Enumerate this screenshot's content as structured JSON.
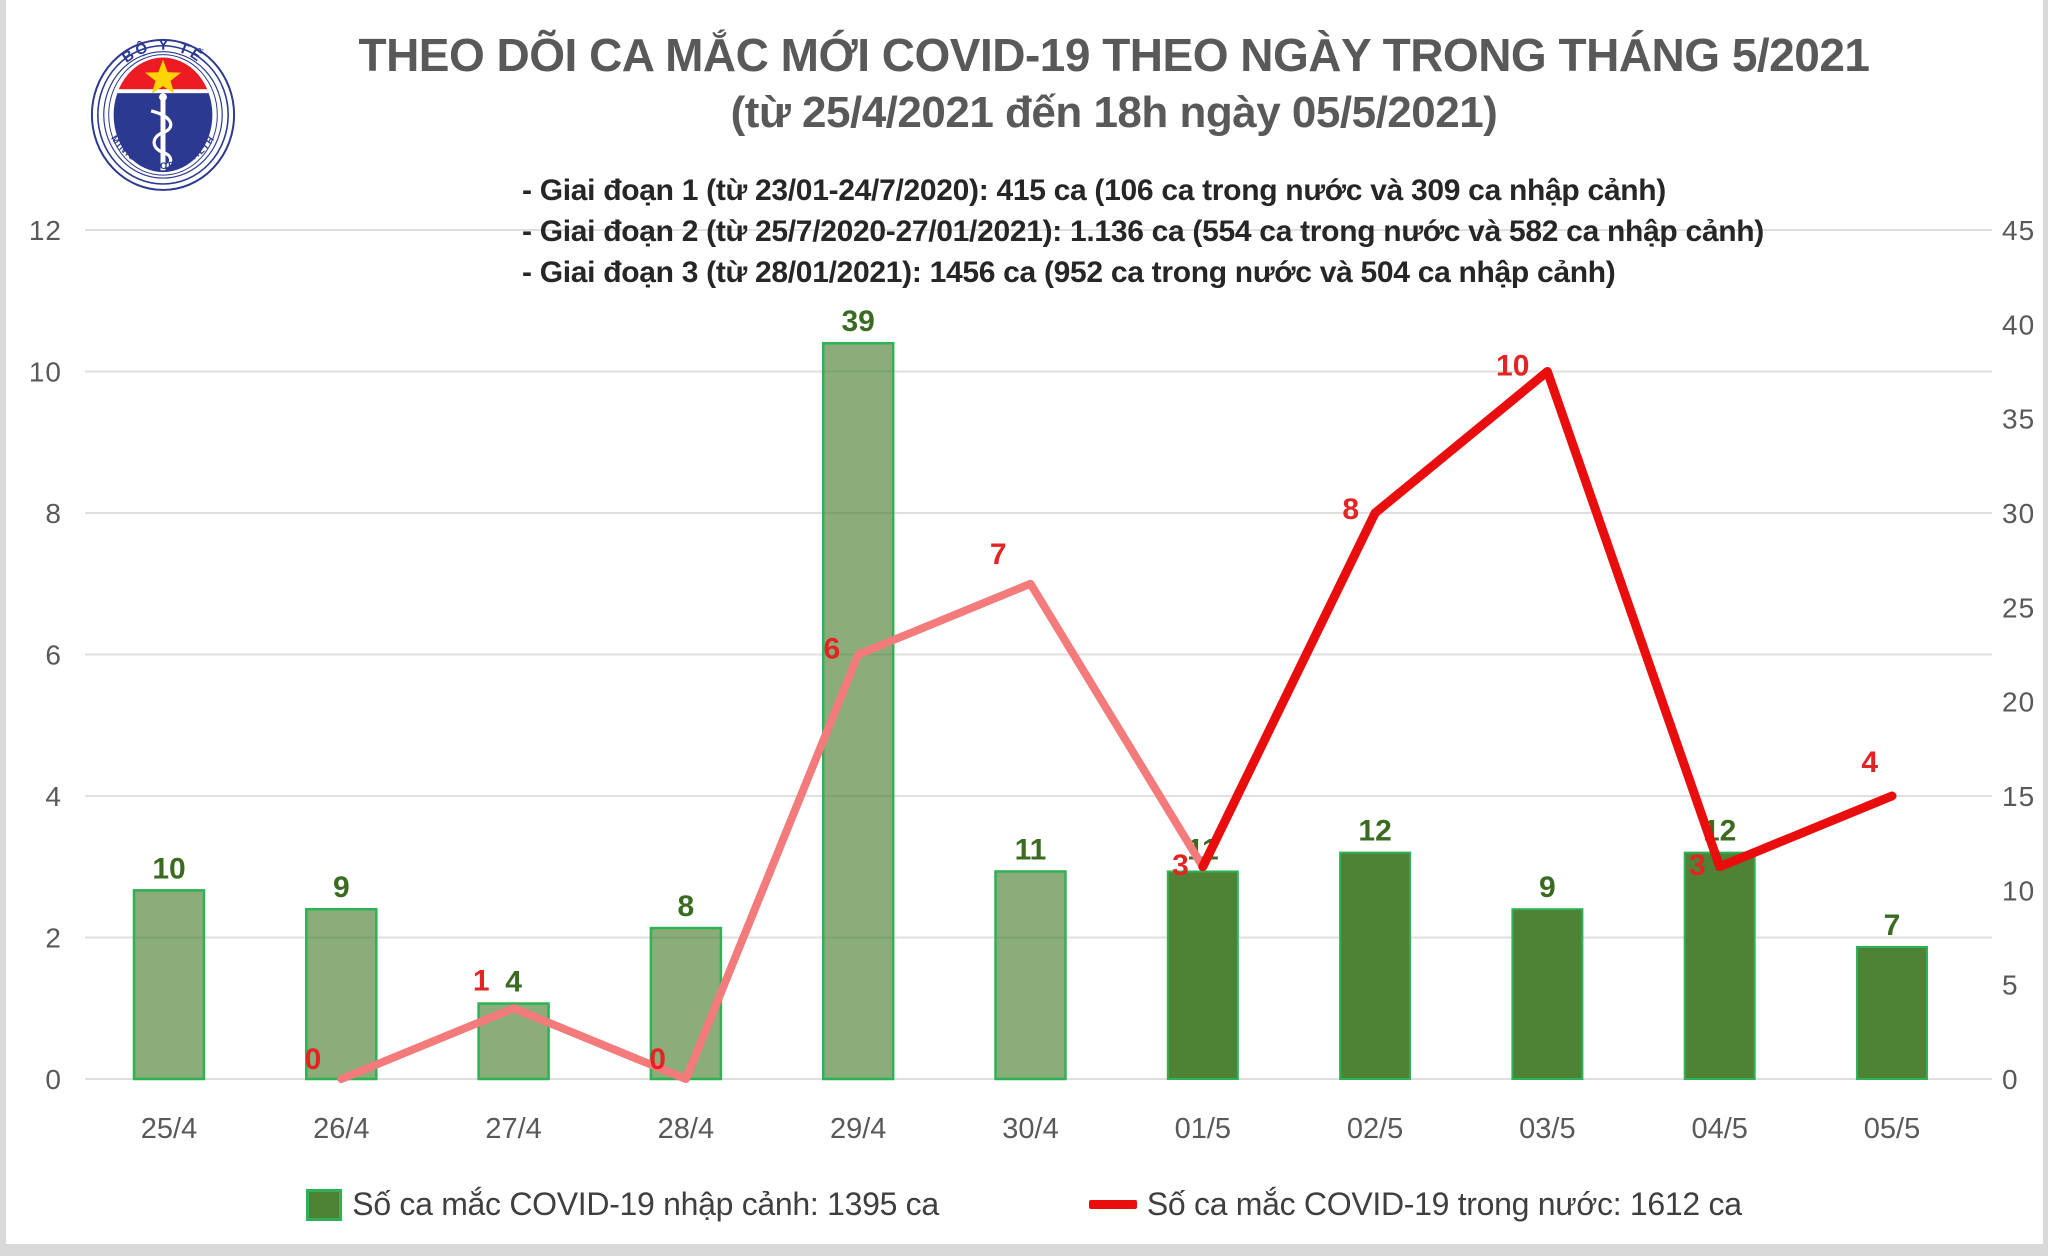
{
  "page": {
    "background": "#ffffff",
    "frame_color": "#d9d9d9"
  },
  "logo": {
    "top_text": "BỘ Y TẾ",
    "bottom_text": "MINISTRY OF HEALTH",
    "colors": {
      "blue": "#2b3990",
      "red": "#ed1c24",
      "star": "#ffd400",
      "white": "#ffffff"
    }
  },
  "header": {
    "title": "THEO DÕI CA MẮC MỚI COVID-19 THEO NGÀY TRONG THÁNG 5/2021",
    "subtitle": "(từ 25/4/2021 đến 18h ngày 05/5/2021)",
    "color": "#595959"
  },
  "annotations": {
    "color": "#262626",
    "lines": [
      "- Giai đoạn 1 (từ 23/01-24/7/2020): 415 ca (106 ca trong nước và 309 ca nhập cảnh)",
      "- Giai đoạn 2 (từ 25/7/2020-27/01/2021): 1.136 ca (554 ca trong nước và 582 ca nhập cảnh)",
      "- Giai đoạn 3 (từ 28/01/2021): 1456 ca (952 ca trong nước và 504 ca nhập cảnh)"
    ]
  },
  "chart_data": {
    "type": "bar+line dual-axis",
    "categories": [
      "25/4",
      "26/4",
      "27/4",
      "28/4",
      "29/4",
      "30/4",
      "01/5",
      "02/5",
      "03/5",
      "04/5",
      "05/5"
    ],
    "phase_by_point": [
      "april",
      "april",
      "april",
      "april",
      "april",
      "april",
      "may",
      "may",
      "may",
      "may",
      "may"
    ],
    "series": [
      {
        "name": "Số ca mắc COVID-19 nhập cảnh",
        "type": "bar",
        "axis": "right",
        "values": [
          10,
          9,
          4,
          8,
          39,
          11,
          11,
          12,
          9,
          12,
          7
        ],
        "fill": "#4E8234",
        "border": "#2FB156",
        "label_color": "#3B6B21"
      },
      {
        "name": "Số ca mắc COVID-19 trong nước",
        "type": "line",
        "axis": "left",
        "values": [
          null,
          0,
          1,
          0,
          6,
          7,
          3,
          8,
          10,
          3,
          4
        ],
        "color_april": "#F47B7B",
        "color_may": "#E90D0D",
        "label_color": "#E42323"
      }
    ],
    "left_axis": {
      "min": 0,
      "max": 12,
      "ticks": [
        0,
        2,
        4,
        6,
        8,
        10,
        12
      ]
    },
    "right_axis": {
      "min": 0,
      "max": 45,
      "ticks": [
        0,
        5,
        10,
        15,
        20,
        25,
        30,
        35,
        40,
        45
      ]
    },
    "gridline_color": "#DFDFDF",
    "axis_label_color": "#595959",
    "grid": "horizontal only",
    "legend_position": "bottom"
  },
  "legend": {
    "text_color": "#3f3f3f",
    "items": [
      {
        "swatch": "bar",
        "label": "Số ca mắc COVID-19 nhập cảnh: 1395 ca"
      },
      {
        "swatch": "line",
        "label": "Số ca mắc COVID-19 trong nước: 1612 ca"
      }
    ]
  }
}
